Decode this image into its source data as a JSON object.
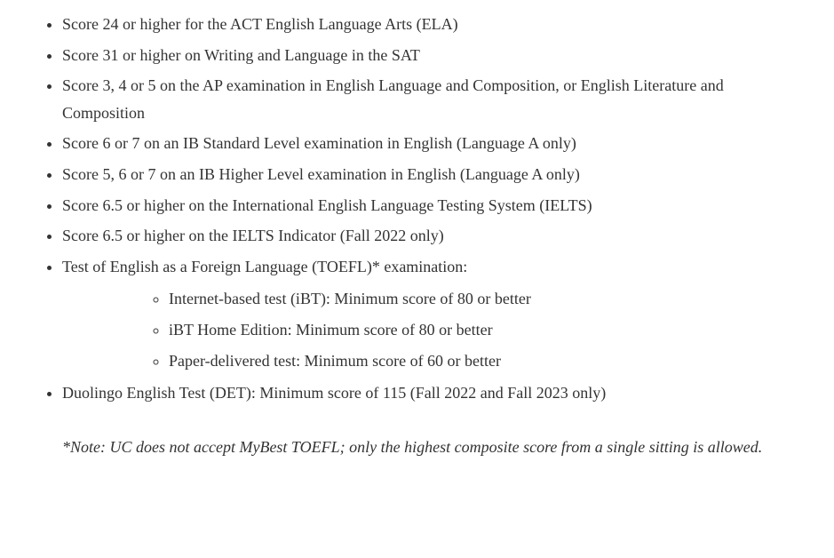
{
  "items": [
    "Score 24 or higher for the ACT English Language Arts (ELA)",
    "Score 31 or higher on Writing and Language in the SAT",
    "Score 3, 4 or 5 on the AP examination in English Language and Composition, or English Literature and Composition",
    "Score 6 or 7 on an IB Standard Level examination in English (Language A only)",
    "Score 5, 6 or 7 on an IB Higher Level examination in English (Language A only)",
    "Score 6.5 or higher on the International English Language Testing System (IELTS)",
    "Score 6.5 or higher on the IELTS Indicator (Fall 2022 only)"
  ],
  "toefl": {
    "label": "Test of English as a Foreign Language (TOEFL)* examination:",
    "sub": [
      "Internet-based test (iBT): Minimum score of 80 or better",
      "iBT Home Edition: Minimum score of 80 or better",
      "Paper-delivered test: Minimum score of 60 or better"
    ]
  },
  "last_item": "Duolingo English Test (DET): Minimum score of 115 (Fall 2022 and Fall 2023 only)",
  "note": "*Note: UC does not accept MyBest TOEFL; only the highest composite score from a single sitting is allowed."
}
